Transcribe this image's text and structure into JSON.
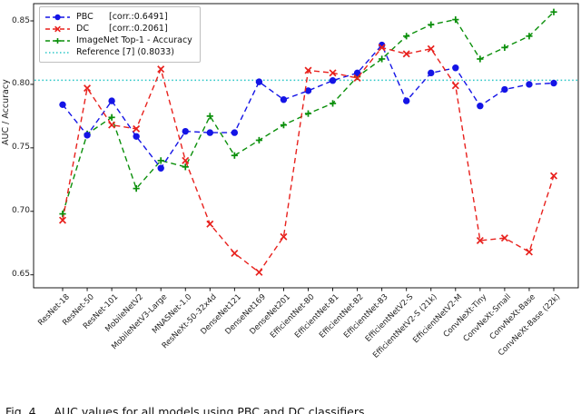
{
  "figure": {
    "caption": "Fig. 4.    AUC values for all models using PBC and DC classifiers",
    "background": "#ffffff"
  },
  "chart_data": {
    "type": "line",
    "title": "",
    "xlabel": "",
    "ylabel": "AUC / Accuracy",
    "ylim": [
      0.64,
      0.862
    ],
    "yticks": [
      0.65,
      0.7,
      0.75,
      0.8,
      0.85
    ],
    "grid": false,
    "legend_position": "upper-left",
    "categories": [
      "ResNet-18",
      "ResNet-50",
      "ResNet-101",
      "MobileNetV2",
      "MobileNetV3-Large",
      "MNASNet-1.0",
      "ResNeXt-50-32x4d",
      "DenseNet121",
      "DenseNet169",
      "DenseNet201",
      "EfficientNet-B0",
      "EfficientNet-B1",
      "EfficientNet-B2",
      "EfficientNet-B3",
      "EfficientNetV2-S",
      "EfficientNetV2-S (21k)",
      "EfficientNetV2-M",
      "ConvNeXt-Tiny",
      "ConvNeXt-Small",
      "ConvNeXt-Base",
      "ConvNeXt-Base (22k)"
    ],
    "series": [
      {
        "name": "PBC",
        "legend_detail": "[corr.:0.6491]",
        "color": "#1414e6",
        "marker": "circle",
        "linestyle": "dashed",
        "values": [
          0.784,
          0.76,
          0.787,
          0.759,
          0.734,
          0.763,
          0.762,
          0.762,
          0.802,
          0.788,
          0.795,
          0.803,
          0.809,
          0.831,
          0.787,
          0.809,
          0.813,
          0.783,
          0.796,
          0.8,
          0.801
        ]
      },
      {
        "name": "DC",
        "legend_detail": "[corr.:0.2061]",
        "color": "#e8211d",
        "marker": "x",
        "linestyle": "dashed",
        "values": [
          0.693,
          0.797,
          0.768,
          0.765,
          0.812,
          0.74,
          0.69,
          0.667,
          0.652,
          0.68,
          0.811,
          0.809,
          0.805,
          0.829,
          0.824,
          0.828,
          0.799,
          0.677,
          0.679,
          0.668,
          0.728
        ]
      },
      {
        "name": "ImageNet Top-1 - Accuracy",
        "legend_detail": "",
        "color": "#0a8f0a",
        "marker": "plus",
        "linestyle": "dashed",
        "values": [
          0.698,
          0.761,
          0.774,
          0.718,
          0.74,
          0.735,
          0.775,
          0.744,
          0.756,
          0.768,
          0.777,
          0.785,
          0.806,
          0.82,
          0.838,
          0.847,
          0.851,
          0.82,
          0.829,
          0.838,
          0.857
        ]
      }
    ],
    "reference": {
      "label": "Reference [7] (0.8033)",
      "value": 0.8033,
      "color": "#2cc7c7",
      "linestyle": "dotted"
    }
  }
}
